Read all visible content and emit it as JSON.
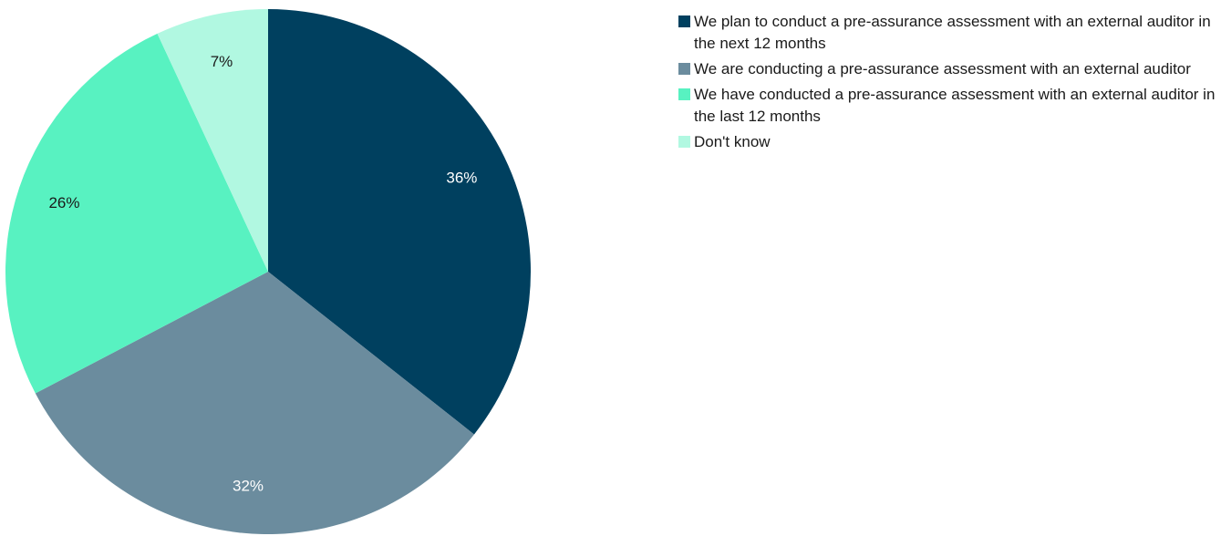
{
  "chart_data": {
    "type": "pie",
    "title": "",
    "slices": [
      {
        "label": "We plan to conduct a pre-assurance assessment with an external auditor in the next 12 months",
        "value": 36,
        "display": "36%",
        "color": "#00405f",
        "label_color": "#ffffff"
      },
      {
        "label": "We are conducting a pre-assurance assessment with an external auditor",
        "value": 32,
        "display": "32%",
        "color": "#6b8c9e",
        "label_color": "#ffffff"
      },
      {
        "label": "We have conducted a pre-assurance assessment with an external auditor in the last 12 months",
        "value": 26,
        "display": "26%",
        "color": "#58f2c1",
        "label_color": "#1a1a1a"
      },
      {
        "label": "Don't know",
        "value": 7,
        "display": "7%",
        "color": "#b1f8e1",
        "label_color": "#1a1a1a"
      }
    ],
    "start_angle": "12 o'clock",
    "direction": "clockwise",
    "legend_position": "right"
  }
}
